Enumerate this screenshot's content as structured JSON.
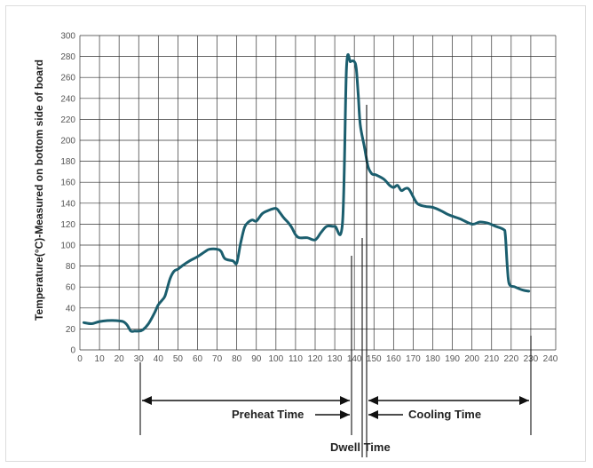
{
  "chart_data": {
    "type": "line",
    "title": "",
    "xlabel": "",
    "ylabel": "Temperature(°C)-Measured on bottom side of board",
    "xlim": [
      0,
      240
    ],
    "ylim": [
      0,
      300
    ],
    "xticks": [
      0,
      10,
      20,
      30,
      40,
      50,
      60,
      70,
      80,
      90,
      100,
      110,
      120,
      130,
      140,
      150,
      160,
      170,
      180,
      190,
      200,
      210,
      220,
      230,
      240
    ],
    "yticks": [
      0,
      20,
      40,
      60,
      80,
      100,
      120,
      140,
      160,
      180,
      200,
      220,
      240,
      260,
      280,
      300
    ],
    "grid": true,
    "line_color": "#1b5e6e",
    "series": [
      {
        "x": [
          2,
          6,
          10,
          14,
          18,
          22,
          24,
          26,
          28,
          30,
          32,
          35,
          38,
          40,
          43,
          44,
          46,
          48,
          50,
          52,
          56,
          60,
          64,
          66,
          70,
          72,
          74,
          78,
          80,
          82,
          84,
          86,
          88,
          90,
          93,
          96,
          100,
          102,
          104,
          106,
          108,
          110,
          112,
          116,
          120,
          123,
          126,
          130,
          134,
          136,
          138,
          140,
          141,
          142,
          143,
          145,
          147,
          149,
          151,
          155,
          158,
          160,
          162,
          164,
          166,
          168,
          172,
          176,
          180,
          184,
          188,
          194,
          200,
          204,
          208,
          212,
          216,
          217,
          218,
          219,
          222,
          226,
          229
        ],
        "y": [
          26,
          25,
          27,
          28,
          28,
          27,
          24,
          18,
          18,
          18,
          19,
          25,
          35,
          43,
          50,
          55,
          68,
          75,
          77,
          80,
          85,
          89,
          94,
          96,
          96,
          94,
          87,
          85,
          83,
          102,
          117,
          122,
          124,
          123,
          130,
          133,
          135,
          131,
          126,
          122,
          117,
          110,
          107,
          107,
          105,
          112,
          118,
          118,
          122,
          269,
          275,
          275,
          268,
          243,
          215,
          195,
          175,
          168,
          167,
          163,
          157,
          155,
          157,
          152,
          154,
          153,
          140,
          137,
          136,
          133,
          129,
          125,
          120,
          122,
          121,
          118,
          115,
          110,
          80,
          63,
          60,
          57,
          56
        ]
      }
    ],
    "annotations": {
      "preheat": "Preheat Time",
      "cooling": "Cooling Time",
      "dwell": "Dwell Time"
    }
  }
}
